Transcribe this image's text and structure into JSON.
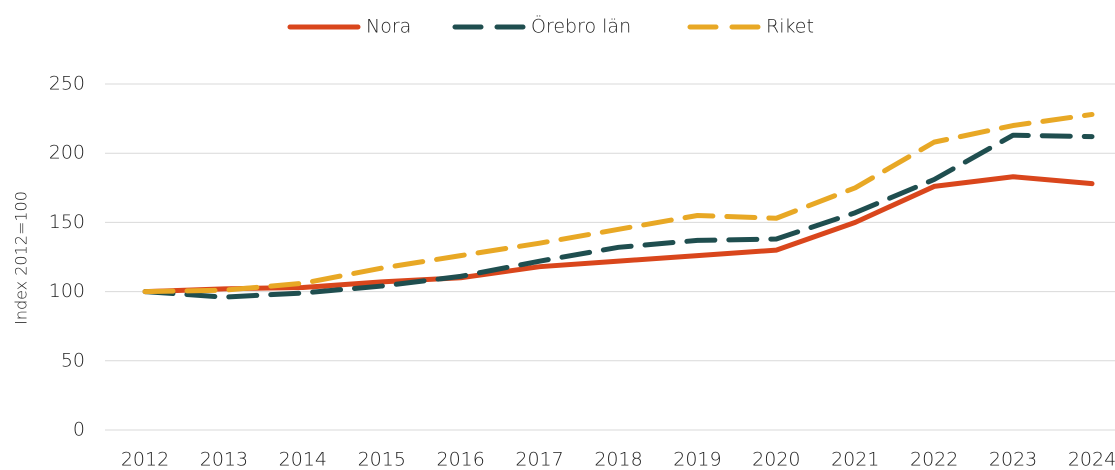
{
  "chart_data": {
    "type": "line",
    "y_label": "Index 2012=100",
    "categories": [
      "2012",
      "2013",
      "2014",
      "2015",
      "2016",
      "2017",
      "2018",
      "2019",
      "2020",
      "2021",
      "2022",
      "2023",
      "2024"
    ],
    "series": [
      {
        "name": "Nora",
        "color": "#d9461c",
        "line_style": "solid",
        "values": [
          100,
          102,
          103,
          107,
          110,
          118,
          122,
          126,
          130,
          150,
          176,
          183,
          178
        ]
      },
      {
        "name": "Örebro län",
        "color": "#1f4e4f",
        "line_style": "dashed",
        "values": [
          100,
          96,
          99,
          104,
          111,
          122,
          132,
          137,
          138,
          157,
          181,
          213,
          212
        ]
      },
      {
        "name": "Riket",
        "color": "#e8a825",
        "line_style": "dashed",
        "values": [
          100,
          101,
          106,
          117,
          126,
          135,
          145,
          155,
          153,
          175,
          208,
          220,
          228
        ]
      }
    ],
    "ylim": [
      0,
      250
    ],
    "yticks": [
      0,
      50,
      100,
      150,
      200,
      250
    ],
    "grid": true,
    "legend": "top"
  }
}
